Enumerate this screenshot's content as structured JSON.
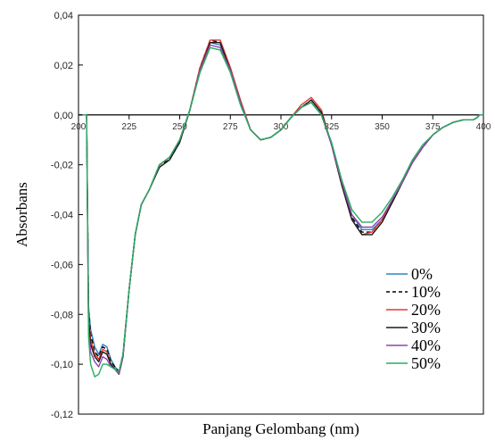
{
  "chart_data": {
    "type": "line",
    "title": "",
    "xlabel": "Panjang Gelombang (nm)",
    "ylabel": "Absorbans",
    "xlim": [
      200,
      400
    ],
    "ylim": [
      -0.12,
      0.04
    ],
    "x_ticks": [
      200,
      225,
      250,
      275,
      300,
      325,
      350,
      375,
      400
    ],
    "x_tick_labels": [
      "200",
      "225",
      "250",
      "275",
      "300",
      "325",
      "350",
      "375",
      "400"
    ],
    "y_ticks": [
      0.04,
      0.02,
      0.0,
      -0.02,
      -0.04,
      -0.06,
      -0.08,
      -0.1,
      -0.12
    ],
    "y_tick_labels": [
      "0,04",
      "0,02",
      "0,00",
      "-0,02",
      "-0,04",
      "-0,06",
      "-0,08",
      "-0,10",
      "-0,12"
    ],
    "grid": false,
    "legend_position": "bottom-right",
    "x": [
      202,
      204,
      205,
      206,
      208,
      210,
      212,
      214,
      216,
      218,
      220,
      222,
      225,
      228,
      231,
      235,
      240,
      245,
      250,
      255,
      260,
      265,
      270,
      275,
      280,
      285,
      290,
      295,
      300,
      305,
      310,
      315,
      320,
      325,
      330,
      335,
      340,
      345,
      350,
      355,
      360,
      365,
      370,
      375,
      380,
      385,
      390,
      395,
      397,
      398,
      400
    ],
    "series": [
      {
        "name": "0%",
        "color": "#2e86c1",
        "dash": "none",
        "values": [
          0,
          0,
          -0.077,
          -0.086,
          -0.093,
          -0.096,
          -0.092,
          -0.093,
          -0.098,
          -0.101,
          -0.103,
          -0.096,
          -0.07,
          -0.048,
          -0.036,
          -0.03,
          -0.02,
          -0.017,
          -0.01,
          0.002,
          0.018,
          0.029,
          0.028,
          0.018,
          0.005,
          -0.006,
          -0.01,
          -0.009,
          -0.006,
          -0.001,
          0.003,
          0.005,
          0.0,
          -0.012,
          -0.027,
          -0.04,
          -0.046,
          -0.046,
          -0.042,
          -0.035,
          -0.027,
          -0.019,
          -0.013,
          -0.008,
          -0.005,
          -0.003,
          -0.002,
          -0.002,
          -0.001,
          0,
          0
        ]
      },
      {
        "name": "10%",
        "color": "#000000",
        "dash": "5,3",
        "values": [
          0,
          0,
          -0.079,
          -0.088,
          -0.095,
          -0.097,
          -0.093,
          -0.094,
          -0.099,
          -0.101,
          -0.103,
          -0.096,
          -0.07,
          -0.048,
          -0.036,
          -0.03,
          -0.02,
          -0.018,
          -0.011,
          0.002,
          0.019,
          0.03,
          0.029,
          0.019,
          0.005,
          -0.006,
          -0.01,
          -0.009,
          -0.006,
          -0.001,
          0.003,
          0.006,
          0.001,
          -0.012,
          -0.028,
          -0.041,
          -0.047,
          -0.047,
          -0.042,
          -0.035,
          -0.027,
          -0.019,
          -0.013,
          -0.008,
          -0.005,
          -0.003,
          -0.002,
          -0.002,
          -0.001,
          0,
          0
        ]
      },
      {
        "name": "20%",
        "color": "#e53935",
        "dash": "none",
        "values": [
          0,
          0,
          -0.081,
          -0.09,
          -0.096,
          -0.098,
          -0.094,
          -0.095,
          -0.1,
          -0.102,
          -0.104,
          -0.097,
          -0.07,
          -0.048,
          -0.036,
          -0.03,
          -0.02,
          -0.017,
          -0.01,
          0.002,
          0.019,
          0.03,
          0.03,
          0.019,
          0.006,
          -0.006,
          -0.01,
          -0.009,
          -0.006,
          -0.001,
          0.004,
          0.007,
          0.002,
          -0.012,
          -0.028,
          -0.042,
          -0.048,
          -0.047,
          -0.042,
          -0.035,
          -0.027,
          -0.019,
          -0.013,
          -0.008,
          -0.005,
          -0.003,
          -0.002,
          -0.002,
          -0.001,
          0,
          0
        ]
      },
      {
        "name": "30%",
        "color": "#1a1a1a",
        "dash": "none",
        "values": [
          0,
          0,
          -0.083,
          -0.092,
          -0.097,
          -0.099,
          -0.095,
          -0.096,
          -0.1,
          -0.102,
          -0.104,
          -0.097,
          -0.07,
          -0.048,
          -0.036,
          -0.03,
          -0.021,
          -0.018,
          -0.011,
          0.002,
          0.018,
          0.029,
          0.029,
          0.018,
          0.005,
          -0.006,
          -0.01,
          -0.009,
          -0.006,
          -0.001,
          0.003,
          0.006,
          0.001,
          -0.012,
          -0.028,
          -0.042,
          -0.048,
          -0.048,
          -0.043,
          -0.035,
          -0.027,
          -0.019,
          -0.013,
          -0.008,
          -0.005,
          -0.003,
          -0.002,
          -0.002,
          -0.001,
          0,
          0
        ]
      },
      {
        "name": "40%",
        "color": "#8e44ad",
        "dash": "none",
        "values": [
          0,
          0,
          -0.086,
          -0.095,
          -0.099,
          -0.101,
          -0.097,
          -0.098,
          -0.101,
          -0.102,
          -0.104,
          -0.097,
          -0.07,
          -0.048,
          -0.036,
          -0.03,
          -0.02,
          -0.017,
          -0.01,
          0.002,
          0.018,
          0.028,
          0.027,
          0.018,
          0.005,
          -0.006,
          -0.01,
          -0.009,
          -0.006,
          -0.001,
          0.003,
          0.005,
          0.0,
          -0.012,
          -0.027,
          -0.04,
          -0.045,
          -0.045,
          -0.041,
          -0.034,
          -0.027,
          -0.019,
          -0.013,
          -0.008,
          -0.005,
          -0.003,
          -0.002,
          -0.002,
          -0.001,
          0,
          0
        ]
      },
      {
        "name": "50%",
        "color": "#27ae60",
        "dash": "none",
        "values": [
          0,
          0,
          -0.089,
          -0.1,
          -0.105,
          -0.104,
          -0.1,
          -0.1,
          -0.101,
          -0.102,
          -0.103,
          -0.096,
          -0.07,
          -0.048,
          -0.036,
          -0.03,
          -0.02,
          -0.017,
          -0.01,
          0.002,
          0.017,
          0.027,
          0.026,
          0.017,
          0.004,
          -0.006,
          -0.01,
          -0.009,
          -0.006,
          -0.001,
          0.003,
          0.005,
          0.0,
          -0.011,
          -0.026,
          -0.038,
          -0.043,
          -0.043,
          -0.039,
          -0.033,
          -0.026,
          -0.018,
          -0.012,
          -0.008,
          -0.005,
          -0.003,
          -0.002,
          -0.002,
          -0.001,
          0,
          0
        ]
      }
    ]
  }
}
